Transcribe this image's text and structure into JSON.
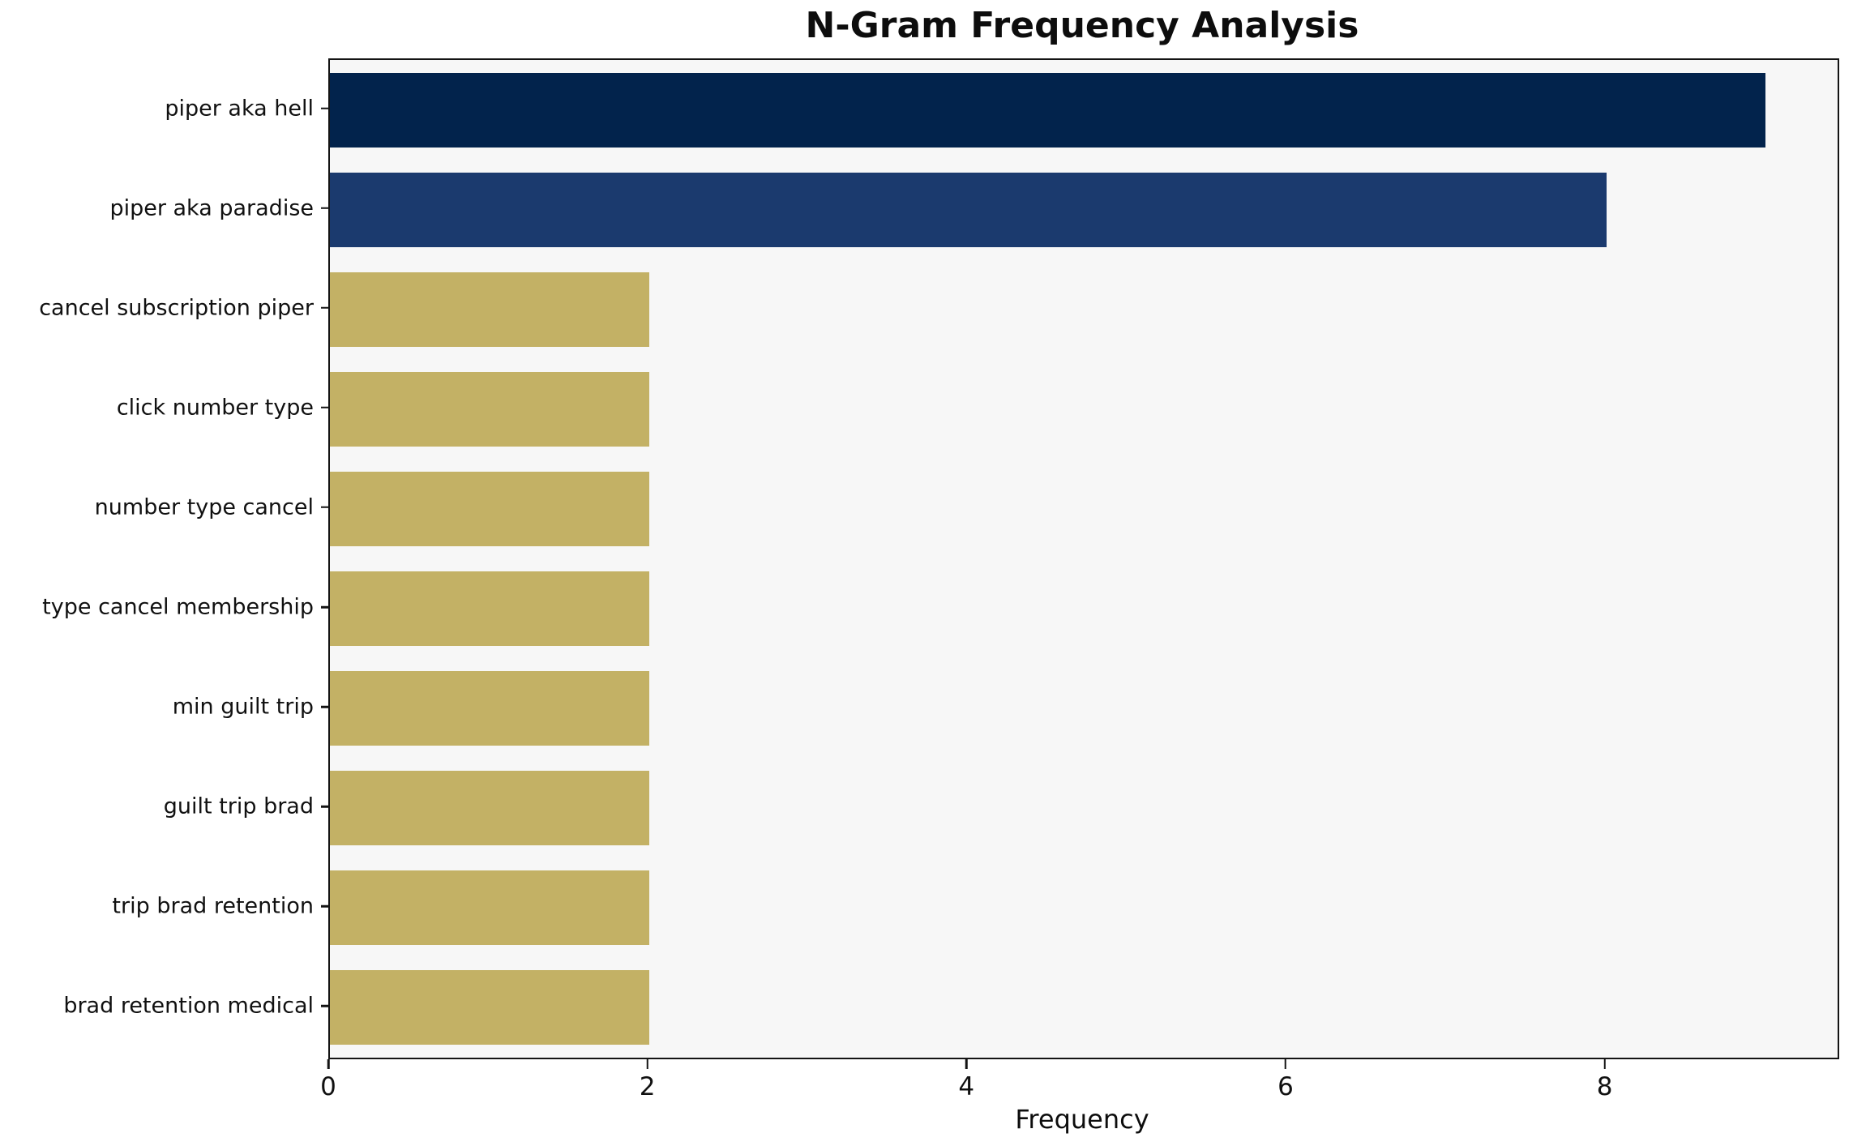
{
  "chart_data": {
    "type": "bar",
    "orientation": "horizontal",
    "title": "N-Gram Frequency Analysis",
    "xlabel": "Frequency",
    "ylabel": "",
    "categories": [
      "piper aka hell",
      "piper aka paradise",
      "cancel subscription piper",
      "click number type",
      "number type cancel",
      "type cancel membership",
      "min guilt trip",
      "guilt trip brad",
      "trip brad retention",
      "brad retention medical"
    ],
    "values": [
      9,
      8,
      2,
      2,
      2,
      2,
      2,
      2,
      2,
      2
    ],
    "bar_colors": [
      "#02234c",
      "#1b3a6e",
      "#c3b165",
      "#c3b165",
      "#c3b165",
      "#c3b165",
      "#c3b165",
      "#c3b165",
      "#c3b165",
      "#c3b165"
    ],
    "xlim": [
      0,
      9.45
    ],
    "xticks": [
      0,
      2,
      4,
      6,
      8
    ],
    "grid": false,
    "legend": false,
    "colors": {
      "plot_background": "#f7f7f7",
      "figure_background": "#ffffff",
      "spine": "#141414",
      "text": "#111111"
    }
  }
}
